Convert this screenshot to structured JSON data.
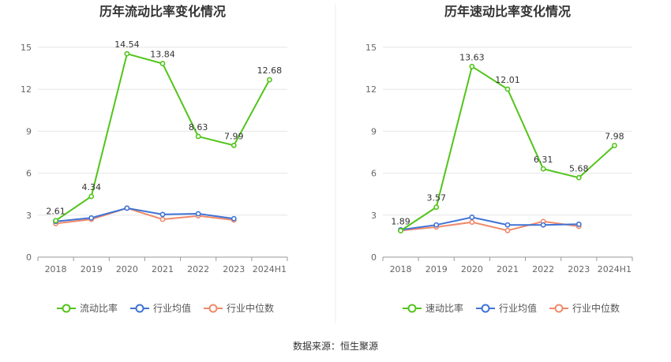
{
  "colors": {
    "primary": "#52c41a",
    "avg": "#3f73d6",
    "median": "#f08a6a",
    "grid": "#e6e6e6",
    "axis": "#999999"
  },
  "legend_icons": [
    "line-circle-icon",
    "line-circle-icon",
    "line-circle-icon"
  ],
  "chart_data": [
    {
      "type": "line",
      "title": "历年流动比率变化情况",
      "categories": [
        "2018",
        "2019",
        "2020",
        "2021",
        "2022",
        "2023",
        "2024H1"
      ],
      "ylim": [
        0,
        15
      ],
      "yticks": [
        "0",
        "3",
        "6",
        "9",
        "12",
        "15"
      ],
      "grid": true,
      "legend_position": "bottom",
      "series": [
        {
          "name": "流动比率",
          "values": [
            2.61,
            4.34,
            14.54,
            13.84,
            8.63,
            7.99,
            12.68
          ],
          "labels": [
            "2.61",
            "4.34",
            "14.54",
            "13.84",
            "8.63",
            "7.99",
            "12.68"
          ]
        },
        {
          "name": "行业均值",
          "values": [
            2.55,
            2.8,
            3.5,
            3.05,
            3.1,
            2.75,
            null
          ]
        },
        {
          "name": "行业中位数",
          "values": [
            2.4,
            2.7,
            3.5,
            2.7,
            2.95,
            2.65,
            null
          ]
        }
      ]
    },
    {
      "type": "line",
      "title": "历年速动比率变化情况",
      "categories": [
        "2018",
        "2019",
        "2020",
        "2021",
        "2022",
        "2023",
        "2024H1"
      ],
      "ylim": [
        0,
        15
      ],
      "yticks": [
        "0",
        "3",
        "6",
        "9",
        "12",
        "15"
      ],
      "grid": true,
      "legend_position": "bottom",
      "series": [
        {
          "name": "速动比率",
          "values": [
            1.89,
            3.57,
            13.63,
            12.01,
            6.31,
            5.68,
            7.98
          ],
          "labels": [
            "1.89",
            "3.57",
            "13.63",
            "12.01",
            "6.31",
            "5.68",
            "7.98"
          ]
        },
        {
          "name": "行业均值",
          "values": [
            1.95,
            2.3,
            2.85,
            2.3,
            2.3,
            2.35,
            null
          ]
        },
        {
          "name": "行业中位数",
          "values": [
            1.9,
            2.15,
            2.5,
            1.9,
            2.55,
            2.2,
            null
          ]
        }
      ]
    }
  ],
  "footer": "数据来源：恒生聚源"
}
